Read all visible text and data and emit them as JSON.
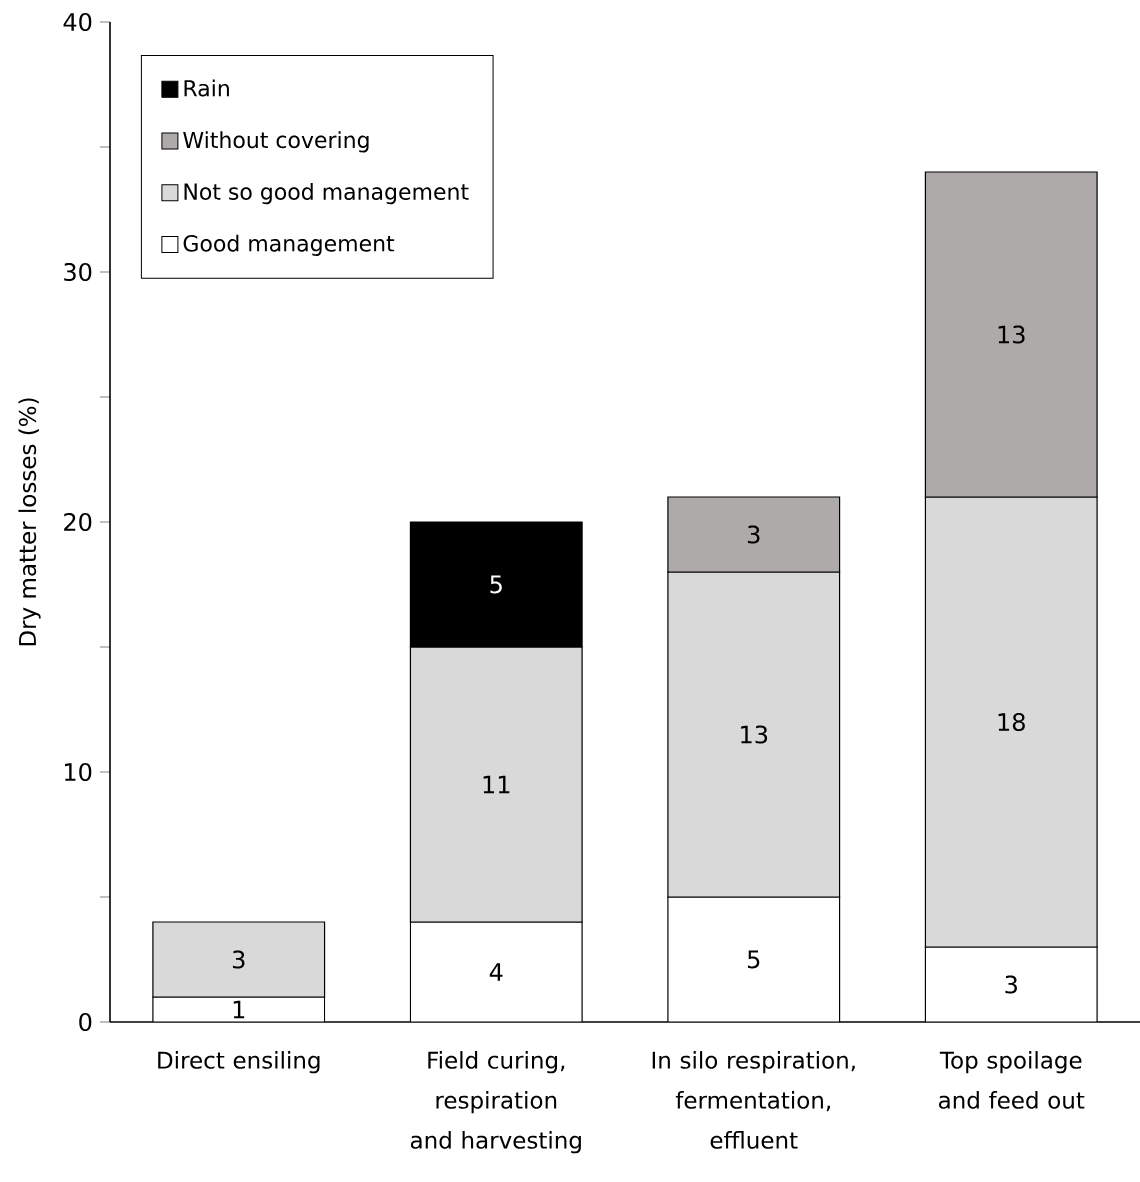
{
  "chart_data": {
    "type": "bar",
    "stacked": true,
    "ylabel": "Dry matter losses (%)",
    "categories": [
      "Direct ensiling",
      "Field curing, respiration and harvesting",
      "In silo respiration, fermentation, effluent",
      "Top spoilage and feed out"
    ],
    "series": [
      {
        "name": "Good management",
        "color": "#ffffff",
        "values": [
          1,
          4,
          5,
          3
        ]
      },
      {
        "name": "Not so good management",
        "color": "#d9d9d9",
        "values": [
          3,
          11,
          13,
          18
        ]
      },
      {
        "name": "Without covering",
        "color": "#aeaaaa",
        "values": [
          null,
          null,
          3,
          13
        ]
      },
      {
        "name": "Rain",
        "color": "#000000",
        "values": [
          null,
          5,
          null,
          null
        ]
      }
    ],
    "ylim": [
      0,
      40
    ],
    "yticks": [
      0,
      {
        "value": 5,
        "label": null
      },
      10,
      {
        "value": 15,
        "label": null
      },
      20,
      {
        "value": 25,
        "label": null
      },
      30,
      {
        "value": 35,
        "label": null
      },
      40
    ],
    "data_labels": true,
    "legend": "top left",
    "grid": false
  }
}
